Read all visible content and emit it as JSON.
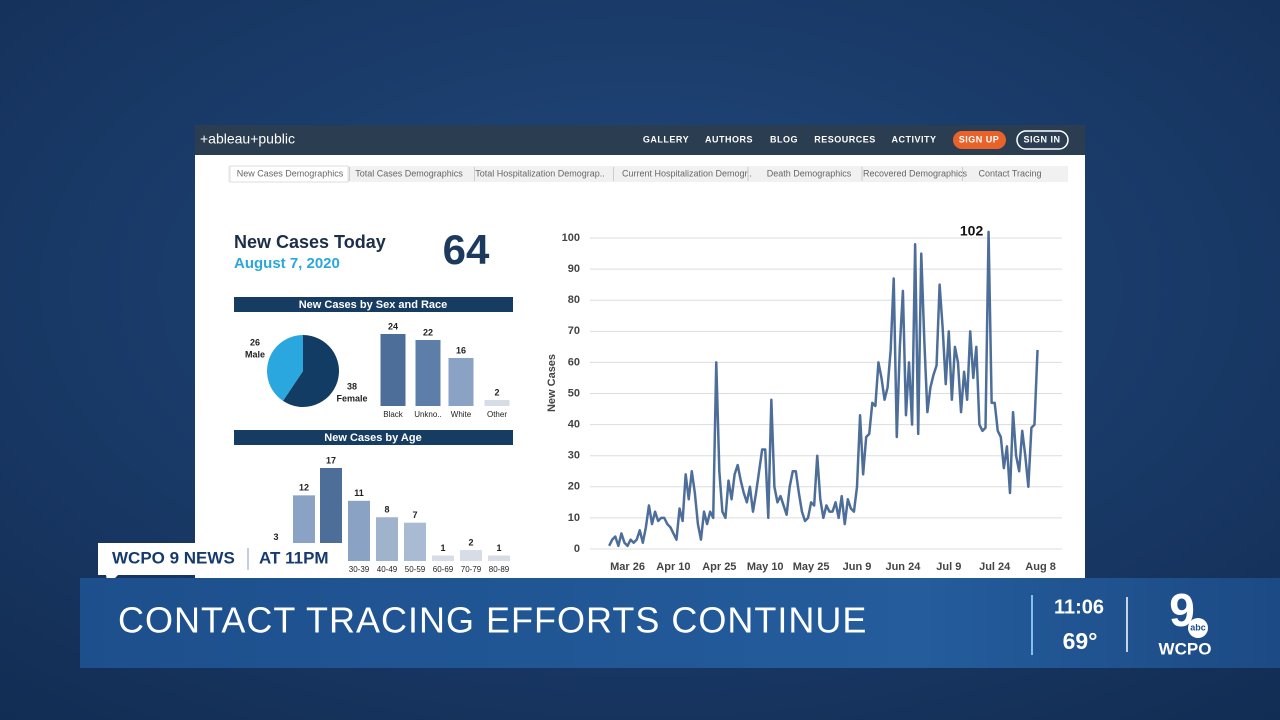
{
  "nav": {
    "logo": "+ableau+public",
    "links": [
      "GALLERY",
      "AUTHORS",
      "BLOG",
      "RESOURCES",
      "ACTIVITY"
    ],
    "sign_up": "SIGN UP",
    "sign_in": "SIGN IN"
  },
  "tabs": [
    "New Cases Demographics",
    "Total Cases Demographics",
    "Total Hospitalization Demograp..",
    "Current Hospitalization Demogr..",
    "Death Demographics",
    "Recovered Demographics",
    "Contact Tracing"
  ],
  "summary": {
    "title": "New Cases Today",
    "date": "August 7, 2020",
    "count": 64
  },
  "chart_data": [
    {
      "type": "pie",
      "title": "New Cases by Sex and Race",
      "categories": [
        "Male",
        "Female"
      ],
      "values": [
        26,
        38
      ],
      "colors": [
        "#2aa7df",
        "#123c63"
      ]
    },
    {
      "type": "bar",
      "categories": [
        "Black",
        "Unkno..",
        "White",
        "Other"
      ],
      "values": [
        24,
        22,
        16,
        2
      ],
      "colors": [
        "#4e6e9a",
        "#5c7ea9",
        "#8aa3c4",
        "#d6dde6"
      ]
    },
    {
      "type": "bar",
      "title": "New Cases by Age",
      "categories": [
        null,
        null,
        null,
        "30-39",
        "40-49",
        "50-59",
        "60-69",
        "70-79",
        "80-89"
      ],
      "values": [
        3,
        12,
        17,
        11,
        8,
        7,
        1,
        2,
        1
      ],
      "colors": [
        "#a9bbd2",
        "#8aa3c4",
        "#4e6e9a",
        "#8aa3c4",
        "#9fb3cd",
        "#a9bbd2",
        "#d6dde6",
        "#d6dde6",
        "#d6dde6"
      ]
    },
    {
      "type": "line",
      "y_label": "New Cases",
      "color": "#4e6e9a",
      "grid": true,
      "label_max": true,
      "x": [
        "Mar 20",
        "Mar 21",
        "Mar 22",
        "Mar 23",
        "Mar 24",
        "Mar 25",
        "Mar 26",
        "Mar 27",
        "Mar 28",
        "Mar 29",
        "Mar 30",
        "Mar 31",
        "Apr 1",
        "Apr 2",
        "Apr 3",
        "Apr 4",
        "Apr 5",
        "Apr 6",
        "Apr 7",
        "Apr 8",
        "Apr 9",
        "Apr 10",
        "Apr 11",
        "Apr 12",
        "Apr 13",
        "Apr 14",
        "Apr 15",
        "Apr 16",
        "Apr 17",
        "Apr 18",
        "Apr 19",
        "Apr 20",
        "Apr 21",
        "Apr 22",
        "Apr 23",
        "Apr 24",
        "Apr 25",
        "Apr 26",
        "Apr 27",
        "Apr 28",
        "Apr 29",
        "Apr 30",
        "May 1",
        "May 2",
        "May 3",
        "May 4",
        "May 5",
        "May 6",
        "May 7",
        "May 8",
        "May 9",
        "May 10",
        "May 11",
        "May 12",
        "May 13",
        "May 14",
        "May 15",
        "May 16",
        "May 17",
        "May 18",
        "May 19",
        "May 20",
        "May 21",
        "May 22",
        "May 23",
        "May 24",
        "May 25",
        "May 26",
        "May 27",
        "May 28",
        "May 29",
        "May 30",
        "May 31",
        "Jun 1",
        "Jun 2",
        "Jun 3",
        "Jun 4",
        "Jun 5",
        "Jun 6",
        "Jun 7",
        "Jun 8",
        "Jun 9",
        "Jun 10",
        "Jun 11",
        "Jun 12",
        "Jun 13",
        "Jun 14",
        "Jun 15",
        "Jun 16",
        "Jun 17",
        "Jun 18",
        "Jun 19",
        "Jun 20",
        "Jun 21",
        "Jun 22",
        "Jun 23",
        "Jun 24",
        "Jun 25",
        "Jun 26",
        "Jun 27",
        "Jun 28",
        "Jun 29",
        "Jun 30",
        "Jul 1",
        "Jul 2",
        "Jul 3",
        "Jul 4",
        "Jul 5",
        "Jul 6",
        "Jul 7",
        "Jul 8",
        "Jul 9",
        "Jul 10",
        "Jul 11",
        "Jul 12",
        "Jul 13",
        "Jul 14",
        "Jul 15",
        "Jul 16",
        "Jul 17",
        "Jul 18",
        "Jul 19",
        "Jul 20",
        "Jul 21",
        "Jul 22",
        "Jul 23",
        "Jul 24",
        "Jul 25",
        "Jul 26",
        "Jul 27",
        "Jul 28",
        "Jul 29",
        "Jul 30",
        "Jul 31",
        "Aug 1",
        "Aug 2",
        "Aug 3",
        "Aug 4",
        "Aug 5",
        "Aug 6",
        "Aug 7"
      ],
      "values": [
        1,
        3,
        4,
        1,
        5,
        2,
        1,
        3,
        2,
        3,
        6,
        2,
        7,
        14,
        8,
        12,
        9,
        10,
        10,
        8,
        7,
        5,
        3,
        13,
        9,
        24,
        16,
        25,
        18,
        8,
        3,
        12,
        8,
        12,
        10,
        60,
        25,
        12,
        10,
        22,
        16,
        24,
        27,
        22,
        18,
        15,
        20,
        12,
        18,
        25,
        32,
        32,
        10,
        48,
        20,
        15,
        17,
        14,
        11,
        20,
        25,
        25,
        18,
        12,
        9,
        10,
        15,
        14,
        30,
        16,
        10,
        14,
        12,
        12,
        15,
        10,
        17,
        8,
        16,
        13,
        12,
        20,
        43,
        24,
        36,
        37,
        47,
        46,
        60,
        55,
        48,
        52,
        64,
        87,
        36,
        65,
        83,
        43,
        60,
        40,
        98,
        37,
        95,
        67,
        44,
        52,
        56,
        59,
        85,
        71,
        53,
        70,
        48,
        65,
        60,
        44,
        57,
        48,
        70,
        55,
        65,
        40,
        38,
        39,
        102,
        47,
        47,
        38,
        36,
        26,
        33,
        18,
        44,
        30,
        25,
        38,
        30,
        20,
        39,
        40,
        64
      ],
      "xlim": [
        "Mar 17",
        "Aug 15"
      ],
      "xticks": [
        "Mar 26",
        "Apr 10",
        "Apr 25",
        "May 10",
        "May 25",
        "Jun 9",
        "Jun 24",
        "Jul 9",
        "Jul 24",
        "Aug 8"
      ],
      "ylim": [
        -3,
        104
      ],
      "yticks": [
        0,
        10,
        20,
        30,
        40,
        50,
        60,
        70,
        80,
        90,
        100
      ]
    }
  ],
  "lower_third": {
    "tag": "WCPO 9 NEWS",
    "time_slot": "AT 11PM",
    "headline": "CONTACT TRACING EFFORTS CONTINUE",
    "clock": "11:06",
    "temperature": "69°",
    "logo": {
      "number": "9",
      "network": "abc",
      "station": "WCPO"
    }
  }
}
